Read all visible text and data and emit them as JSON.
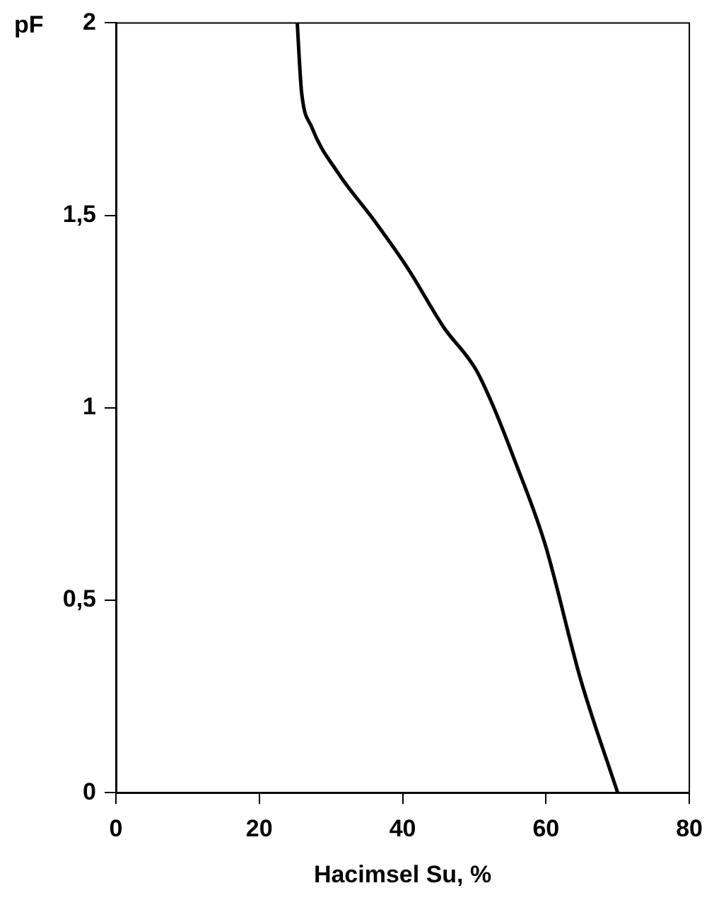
{
  "chart_data": {
    "type": "line",
    "xlabel": "Hacimsel Su, %",
    "ylabel": "pF",
    "x": [
      25.3,
      25.6,
      25.9,
      27.3,
      31.0,
      35.9,
      40.8,
      45.7,
      50.2,
      52.5,
      55.5,
      59.8,
      64.9,
      70.0
    ],
    "series": [
      {
        "color": "#000000",
        "values": [
          2,
          1.9,
          1.82,
          1.73,
          1.61,
          1.49,
          1.36,
          1.21,
          1.1,
          1.01,
          0.87,
          0.65,
          0.29,
          0
        ]
      }
    ],
    "xlim": [
      0,
      80
    ],
    "xticks": [
      0,
      20,
      40,
      60,
      80
    ],
    "ylim": [
      0,
      2
    ],
    "yticks": [
      0,
      {
        "value": 0.5,
        "label": "0,5"
      },
      1,
      {
        "value": 1.5,
        "label": "1,5"
      },
      2
    ],
    "grid": false,
    "legend": false,
    "marker": "none",
    "line_style": "solid"
  }
}
